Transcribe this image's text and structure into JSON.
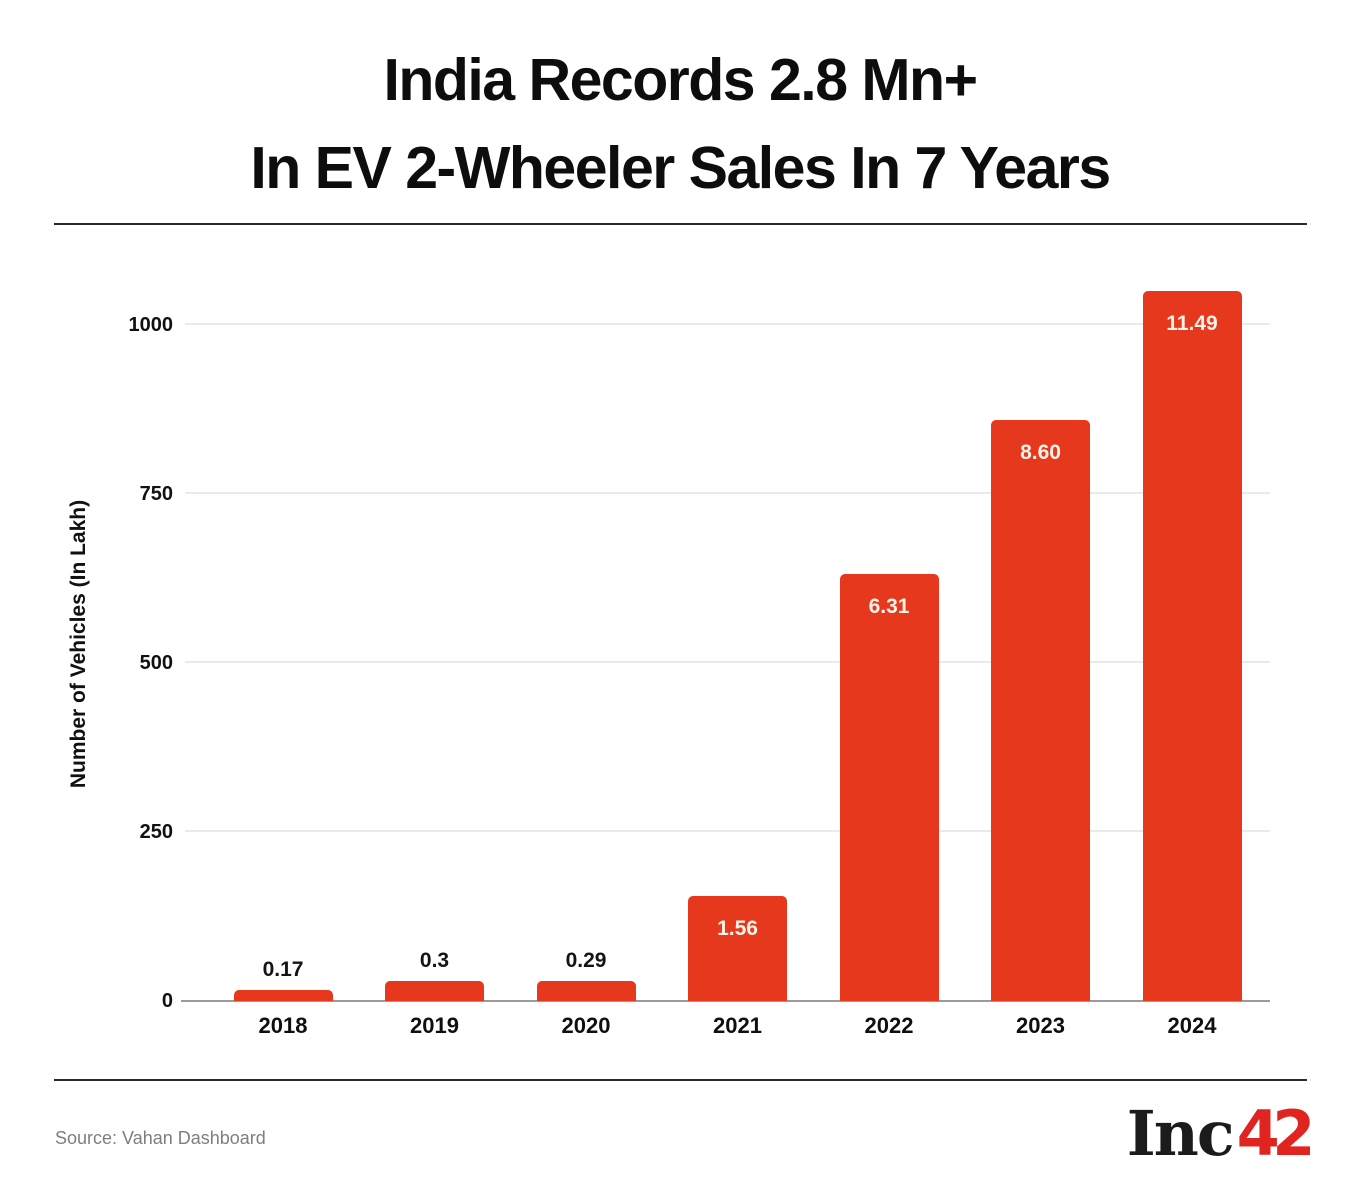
{
  "title": {
    "line1": "India Records 2.8 Mn+",
    "line2": "In EV 2-Wheeler Sales In 7 Years"
  },
  "chart_data": {
    "type": "bar",
    "title": "India Records 2.8 Mn+ In EV 2-Wheeler Sales In 7 Years",
    "categories": [
      "2018",
      "2019",
      "2020",
      "2021",
      "2022",
      "2023",
      "2024"
    ],
    "values": [
      0.17,
      0.3,
      0.29,
      1.56,
      6.31,
      8.6,
      11.49
    ],
    "bar_labels": [
      "0.17",
      "0.3",
      "0.29",
      "1.56",
      "6.31",
      "8.60",
      "11.49"
    ],
    "xlabel": "",
    "ylabel": "Number of Vehicles (In Lakh)",
    "yticks": [
      0,
      250,
      500,
      750,
      1000
    ],
    "ylim": [
      0,
      1056
    ],
    "axis_units_per_value": 100,
    "grid": true,
    "legend": false,
    "bar_color": "#E6381C",
    "label_color_inside": "#FAF3E9",
    "label_color_outside": "#141414",
    "gridline_color": "#EAEAEA",
    "axis_line_color": "#9B9B9B"
  },
  "footer": {
    "source": "Source: Vahan Dashboard",
    "logo": {
      "black_text": "Inc",
      "red_text": "42",
      "red_color": "#E02520"
    }
  }
}
